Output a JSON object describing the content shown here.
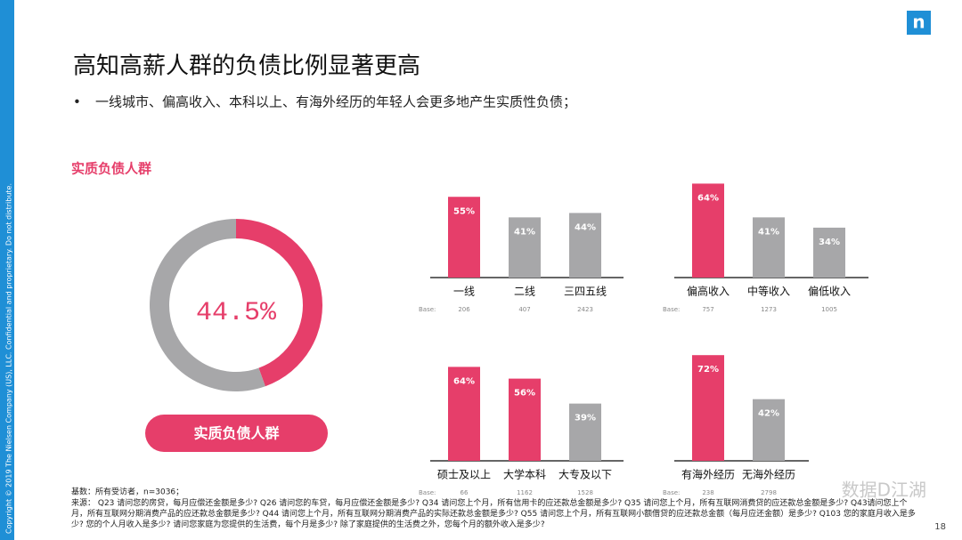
{
  "header": {
    "title": "高知高薪人群的负债比例显著更高",
    "bullet": "一线城市、偏高收入、本科以上、有海外经历的年轻人会更多地产生实质性负债；",
    "logo": "n"
  },
  "section_label": "实质负债人群",
  "chart_data": [
    {
      "type": "pie",
      "values": [
        44.5,
        55.5
      ],
      "value_labels": [
        "44.5%",
        null
      ],
      "colors": [
        "#e63e6a",
        "#a7a7a9"
      ],
      "caption": "实质负债人群"
    },
    {
      "type": "bar",
      "categories": [
        "一线",
        "二线",
        "三四五线"
      ],
      "values": [
        55,
        41,
        44
      ],
      "value_labels": [
        "55%",
        "41%",
        "44%"
      ],
      "colors": [
        "#e63e6a",
        "#a7a7a9",
        "#a7a7a9"
      ],
      "ylim": [
        0,
        100
      ],
      "base_label": "Base:",
      "bases": [
        206,
        407,
        2423
      ]
    },
    {
      "type": "bar",
      "categories": [
        "偏高收入",
        "中等收入",
        "偏低收入"
      ],
      "values": [
        64,
        41,
        34
      ],
      "value_labels": [
        "64%",
        "41%",
        "34%"
      ],
      "colors": [
        "#e63e6a",
        "#a7a7a9",
        "#a7a7a9"
      ],
      "ylim": [
        0,
        100
      ],
      "base_label": "Base:",
      "bases": [
        757,
        1273,
        1005
      ]
    },
    {
      "type": "bar",
      "categories": [
        "硕士及以上",
        "大学本科",
        "大专及以下"
      ],
      "values": [
        64,
        56,
        39
      ],
      "value_labels": [
        "64%",
        "56%",
        "39%"
      ],
      "colors": [
        "#e63e6a",
        "#e63e6a",
        "#a7a7a9"
      ],
      "ylim": [
        0,
        100
      ],
      "base_label": "Base:",
      "bases": [
        66,
        1162,
        1528
      ]
    },
    {
      "type": "bar",
      "categories": [
        "有海外经历",
        "无海外经历"
      ],
      "values": [
        72,
        42
      ],
      "value_labels": [
        "72%",
        "42%"
      ],
      "colors": [
        "#e63e6a",
        "#a7a7a9"
      ],
      "ylim": [
        0,
        100
      ],
      "base_label": "Base:",
      "bases": [
        238,
        2798
      ]
    }
  ],
  "footer": {
    "base_note": "基数：所有受访者，n=3036；",
    "source": "来源： Q23 请问您的房贷，每月应偿还金额是多少? Q26 请问您的车贷，每月应偿还金额是多少? Q34 请问您上个月，所有信用卡的应还款总金额是多少? Q35 请问您上个月，所有互联网消费贷的应还款总金额是多少? Q43请问您上个月，所有互联网分期消费产品的应还款总金额是多少? Q44 请问您上个月，所有互联网分期消费产品的实际还款总金额是多少? Q55 请问您上个月，所有互联网小额借贷的应还款总金额（每月应还金额）是多少? Q103 您的家庭月收入是多少? 您的个人月收入是多少? 请问您家庭为您提供的生活费，每个月是多少? 除了家庭提供的生活费之外，您每个月的额外收入是多少?",
    "page_number": "18",
    "copyright": "Copyright © 2019 The Nielsen Company (US), LLC. Confidential and proprietary. Do not distribute.",
    "watermark": "数据D江湖"
  }
}
